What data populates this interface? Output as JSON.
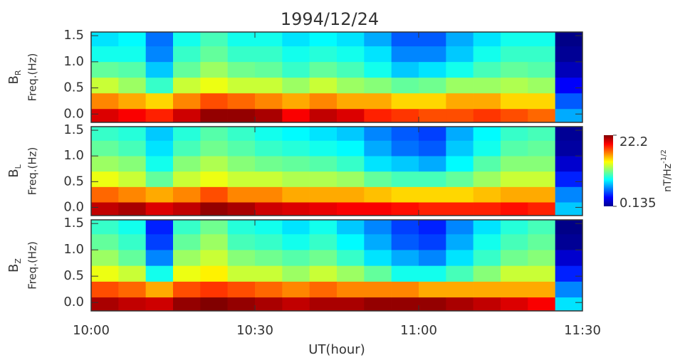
{
  "title": "1994/12/24",
  "x_axis": {
    "label": "UT(hour)",
    "xlim": [
      600,
      690
    ],
    "xticks": [
      {
        "value": 600,
        "label": "10:00"
      },
      {
        "value": 630,
        "label": "10:30"
      },
      {
        "value": 660,
        "label": "11:00"
      },
      {
        "value": 690,
        "label": "11:30"
      }
    ],
    "x_bins": [
      600,
      605,
      610,
      615,
      620,
      625,
      630,
      635,
      640,
      645,
      650,
      655,
      660,
      665,
      670,
      675,
      680,
      685,
      690
    ]
  },
  "colorbar": {
    "min": 0.135,
    "max": 22.2,
    "log": true,
    "colormap": "jet",
    "label": "nT/Hz",
    "label_sup": "-1/2",
    "ticks": [
      22.2,
      0.135
    ]
  },
  "chart_data": [
    {
      "type": "heatmap",
      "label": "B",
      "label_sub": "R",
      "ylabel": "Freq.(Hz)",
      "ylim": [
        -0.16,
        1.57
      ],
      "yticks": [
        {
          "value": 0,
          "label": "0.0"
        },
        {
          "value": 0.5,
          "label": "0.5"
        },
        {
          "value": 1,
          "label": "1.0"
        },
        {
          "value": 1.5,
          "label": "1.5"
        }
      ],
      "y_bins": [
        -0.16,
        0.1,
        0.4,
        0.7,
        1.0,
        1.3,
        1.57
      ],
      "values": [
        [
          14,
          12,
          10,
          15,
          20,
          20,
          18,
          12,
          16,
          14,
          10,
          9,
          8,
          8,
          9,
          8,
          7,
          0.6
        ],
        [
          6,
          5,
          4,
          6,
          8,
          7,
          6,
          5,
          6,
          5,
          5,
          4,
          4,
          5,
          5,
          4,
          4,
          0.4
        ],
        [
          2.5,
          2,
          1.2,
          2.5,
          3,
          2.5,
          2.5,
          2,
          2.5,
          2,
          1.8,
          1.5,
          1.6,
          2,
          2,
          2.2,
          2,
          0.25
        ],
        [
          1.5,
          1.4,
          0.7,
          1.5,
          2,
          1.6,
          1.5,
          1.2,
          1.5,
          1.3,
          1,
          0.7,
          0.8,
          1,
          1.3,
          1.5,
          1.4,
          0.18
        ],
        [
          1,
          1,
          0.5,
          1.2,
          1.5,
          1.2,
          1.2,
          1,
          1.1,
          1,
          0.8,
          0.5,
          0.5,
          0.7,
          1,
          1.2,
          1.2,
          0.15
        ],
        [
          0.8,
          0.9,
          0.45,
          1,
          1.3,
          1,
          1,
          0.8,
          0.9,
          0.8,
          0.6,
          0.4,
          0.4,
          0.6,
          0.8,
          1,
          1,
          0.14
        ]
      ]
    },
    {
      "type": "heatmap",
      "label": "B",
      "label_sub": "L",
      "ylabel": "Freq.(Hz)",
      "ylim": [
        -0.16,
        1.57
      ],
      "yticks": [
        {
          "value": 0,
          "label": "0.0"
        },
        {
          "value": 0.5,
          "label": "0.5"
        },
        {
          "value": 1,
          "label": "1.0"
        },
        {
          "value": 1.5,
          "label": "1.5"
        }
      ],
      "y_bins": [
        -0.16,
        0.1,
        0.4,
        0.7,
        1.0,
        1.3,
        1.57
      ],
      "values": [
        [
          16,
          18,
          14,
          16,
          20,
          18,
          15,
          14,
          13,
          12,
          12,
          11,
          10,
          10,
          10,
          11,
          10,
          0.7
        ],
        [
          7,
          6,
          5,
          6,
          8,
          6,
          6,
          5,
          5,
          5,
          4.5,
          4,
          4,
          4,
          4.5,
          5,
          5,
          0.5
        ],
        [
          3,
          2.5,
          1.5,
          2.5,
          3,
          2.5,
          2.5,
          2.2,
          2.2,
          2,
          1.5,
          1.3,
          1.3,
          1.5,
          2,
          2.5,
          2.5,
          0.3
        ],
        [
          2,
          1.8,
          1,
          1.8,
          2.2,
          1.8,
          1.6,
          1.5,
          1.4,
          1.2,
          0.8,
          0.7,
          0.6,
          0.9,
          1.4,
          1.8,
          1.8,
          0.2
        ],
        [
          1.5,
          1.3,
          0.8,
          1.3,
          1.6,
          1.4,
          1.2,
          1.1,
          1,
          0.9,
          0.6,
          0.45,
          0.4,
          0.7,
          1,
          1.4,
          1.5,
          0.16
        ],
        [
          1.2,
          1.1,
          0.7,
          1.1,
          1.4,
          1.2,
          1,
          0.9,
          0.8,
          0.7,
          0.5,
          0.4,
          0.35,
          0.6,
          0.9,
          1.2,
          1.3,
          0.15
        ]
      ]
    },
    {
      "type": "heatmap",
      "label": "B",
      "label_sub": "Z",
      "ylabel": "Freq.(Hz)",
      "ylim": [
        -0.16,
        1.57
      ],
      "yticks": [
        {
          "value": 0,
          "label": "0.0"
        },
        {
          "value": 0.5,
          "label": "0.5"
        },
        {
          "value": 1,
          "label": "1.0"
        },
        {
          "value": 1.5,
          "label": "1.5"
        }
      ],
      "y_bins": [
        -0.16,
        0.1,
        0.4,
        0.7,
        1.0,
        1.3,
        1.57
      ],
      "values": [
        [
          18,
          16,
          15,
          20,
          22,
          20,
          18,
          16,
          18,
          18,
          20,
          20,
          20,
          18,
          16,
          14,
          12,
          0.8
        ],
        [
          8,
          7,
          5,
          8,
          9,
          8,
          7,
          6,
          7,
          6,
          6,
          6,
          5,
          5,
          5,
          5,
          5,
          0.5
        ],
        [
          3,
          2.5,
          1,
          3,
          3.5,
          2.5,
          2.5,
          2,
          2.5,
          2,
          1.5,
          1,
          1,
          1.3,
          1.8,
          2.5,
          2.5,
          0.3
        ],
        [
          2,
          1.5,
          0.5,
          2,
          2.5,
          1.8,
          1.6,
          1.4,
          1.6,
          1.2,
          0.8,
          0.6,
          0.5,
          0.8,
          1.2,
          1.6,
          1.8,
          0.2
        ],
        [
          1.5,
          1.2,
          0.35,
          1.5,
          2,
          1.3,
          1.2,
          1,
          1.2,
          0.9,
          0.6,
          0.4,
          0.35,
          0.6,
          1,
          1.3,
          1.5,
          0.15
        ],
        [
          1.2,
          1,
          0.3,
          1.2,
          1.6,
          1.1,
          1,
          0.8,
          1,
          0.7,
          0.5,
          0.35,
          0.3,
          0.5,
          0.8,
          1.1,
          1.3,
          0.14
        ]
      ]
    }
  ]
}
